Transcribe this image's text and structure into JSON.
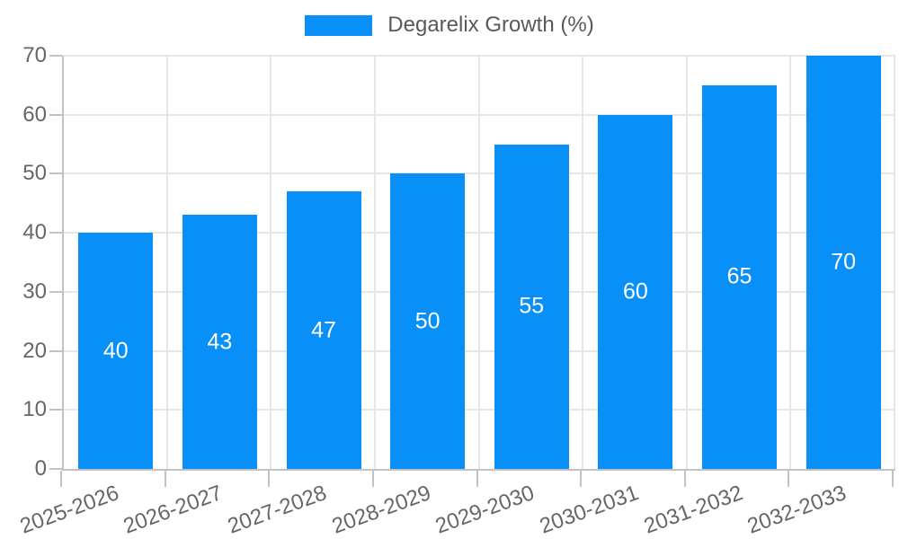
{
  "chart_data": {
    "type": "bar",
    "title": "Degarelix Growth (%)",
    "categories": [
      "2025-2026",
      "2026-2027",
      "2027-2028",
      "2028-2029",
      "2029-2030",
      "2030-2031",
      "2031-2032",
      "2032-2033"
    ],
    "series": [
      {
        "name": "Degarelix Growth (%)",
        "values": [
          40,
          43,
          47,
          50,
          55,
          60,
          65,
          70
        ]
      }
    ],
    "values": [
      40,
      43,
      47,
      50,
      55,
      60,
      65,
      70
    ],
    "bar_value_labels": [
      "40",
      "43",
      "47",
      "50",
      "55",
      "60",
      "65",
      "70"
    ],
    "xlabel": "",
    "ylabel": "",
    "ylim": [
      0,
      70
    ],
    "yticks": [
      0,
      10,
      20,
      30,
      40,
      50,
      60,
      70
    ],
    "grid": true,
    "legend_position": "top",
    "colors": {
      "bar": "#0890f8",
      "grid": "#e6e6e6",
      "axis": "#c2c2c2",
      "tick_label": "#666666",
      "legend_label": "#58595b",
      "bar_label": "#ffffff"
    }
  }
}
